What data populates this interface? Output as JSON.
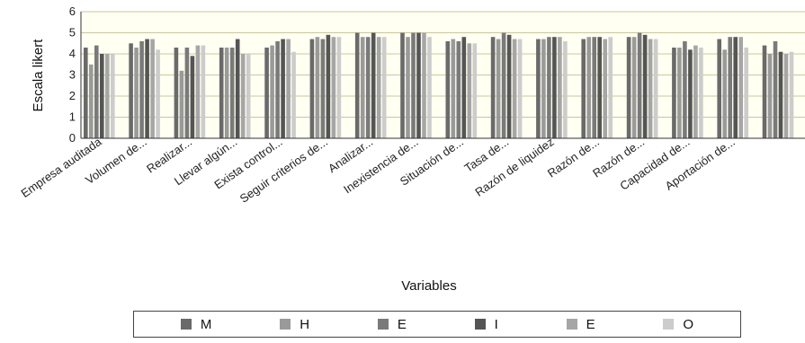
{
  "chart_data": {
    "type": "bar",
    "ylabel": "Escala likert",
    "xlabel": "Variables",
    "ylim": [
      0,
      6
    ],
    "yticks": [
      0,
      1,
      2,
      3,
      4,
      5,
      6
    ],
    "grid": true,
    "legend_position": "bottom",
    "plot_background": "#fffff2",
    "categories": [
      "Empresa auditada",
      "Volumen de...",
      "Realizar...",
      "Llevar algún...",
      "Exista control...",
      "Seguir criterios de...",
      "Analizar...",
      "Inexistencia de...",
      "Situación de...",
      "Tasa de...",
      "Razón de liquidez",
      "Razón de...",
      "Razón de...",
      "Capacidad de...",
      "Aportación de...",
      ""
    ],
    "series": [
      {
        "name": "M",
        "color": "#6a6a6a",
        "values": [
          4.3,
          4.5,
          4.3,
          4.3,
          4.3,
          4.7,
          5.0,
          5.0,
          4.6,
          4.8,
          4.7,
          4.7,
          4.8,
          4.3,
          4.7,
          4.4
        ]
      },
      {
        "name": "H",
        "color": "#9a9a9a",
        "values": [
          3.5,
          4.3,
          3.2,
          4.3,
          4.4,
          4.8,
          4.8,
          4.8,
          4.7,
          4.7,
          4.7,
          4.8,
          4.8,
          4.3,
          4.2,
          4.0
        ]
      },
      {
        "name": "E",
        "color": "#7a7a7a",
        "values": [
          4.4,
          4.6,
          4.3,
          4.3,
          4.6,
          4.7,
          4.8,
          5.0,
          4.6,
          5.0,
          4.8,
          4.8,
          5.0,
          4.6,
          4.8,
          4.6
        ]
      },
      {
        "name": "I",
        "color": "#555555",
        "values": [
          4.0,
          4.7,
          3.9,
          4.7,
          4.7,
          4.9,
          5.0,
          5.0,
          4.8,
          4.9,
          4.8,
          4.8,
          4.9,
          4.2,
          4.8,
          4.1
        ]
      },
      {
        "name": "E",
        "color": "#a6a6a6",
        "values": [
          4.0,
          4.7,
          4.4,
          4.0,
          4.7,
          4.8,
          4.8,
          5.0,
          4.5,
          4.7,
          4.8,
          4.7,
          4.7,
          4.4,
          4.8,
          4.0
        ]
      },
      {
        "name": "O",
        "color": "#cccccc",
        "values": [
          4.0,
          4.2,
          4.4,
          4.0,
          4.1,
          4.8,
          4.8,
          4.8,
          4.5,
          4.7,
          4.6,
          4.8,
          4.7,
          4.3,
          4.3,
          4.1
        ]
      }
    ]
  }
}
